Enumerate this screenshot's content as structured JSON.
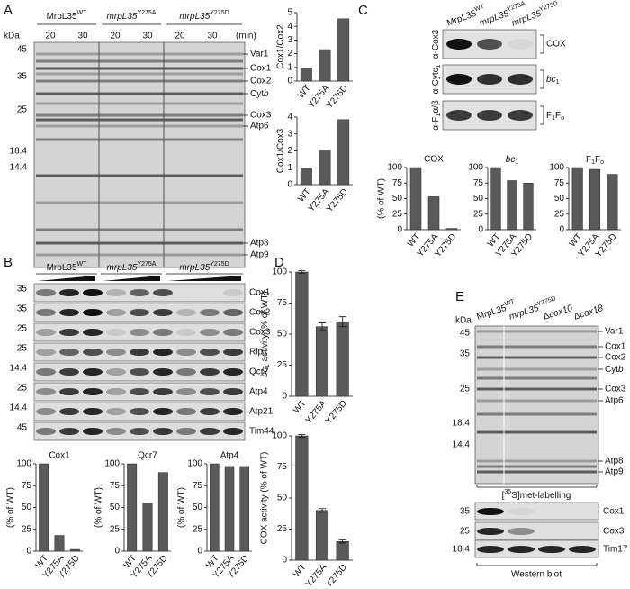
{
  "panels": {
    "A": {
      "label": "A",
      "strains": [
        [
          {
            "t": "MrpL35"
          },
          {
            "sup": "WT"
          }
        ],
        [
          {
            "i": "mrpL35"
          },
          {
            "sup": "Y275A"
          }
        ],
        [
          {
            "i": "mrpL35"
          },
          {
            "sup": "Y275D"
          }
        ]
      ],
      "kda": "kDa",
      "lanes": [
        "20",
        "30",
        "20",
        "30",
        "20",
        "30"
      ],
      "lane_unit": "(min)",
      "markers": [
        "45",
        "35",
        "25",
        "18.4",
        "14.4"
      ],
      "bands": [
        "Var1",
        "Cox1",
        "Cox2",
        [
          {
            "t": "Cyt"
          },
          {
            "i": "b"
          }
        ],
        "Cox3",
        "Atp6",
        "Atp8",
        "Atp9"
      ]
    },
    "B": {
      "label": "B",
      "strains": [
        [
          {
            "t": "MrpL35"
          },
          {
            "sup": "WT"
          }
        ],
        [
          {
            "i": "mrpL35"
          },
          {
            "sup": "Y275A"
          }
        ],
        [
          {
            "i": "mrpL35"
          },
          {
            "sup": "Y275D"
          }
        ]
      ],
      "rows": [
        {
          "marker": "35",
          "protein": "Cox1"
        },
        {
          "marker": "35",
          "protein": "Cox2"
        },
        {
          "marker": "25",
          "protein": "Cox3"
        },
        {
          "marker": "25",
          "protein": "Rip1"
        },
        {
          "marker": "14.4",
          "protein": "Qcr7"
        },
        {
          "marker": "25",
          "protein": "Atp4"
        },
        {
          "marker": "14.4",
          "protein": "Atp21"
        },
        {
          "marker": "45",
          "protein": "Tim44"
        }
      ]
    },
    "C": {
      "label": "C",
      "strains": [
        [
          {
            "t": "MrpL35"
          },
          {
            "sup": "WT"
          }
        ],
        [
          {
            "i": "mrpL35"
          },
          {
            "sup": "Y275A"
          }
        ],
        [
          {
            "i": "mrpL35"
          },
          {
            "sup": "Y275D"
          }
        ]
      ],
      "rows": [
        {
          "antibody": [
            {
              "t": "α-Cox3"
            }
          ],
          "complex": "COX"
        },
        {
          "antibody": [
            {
              "t": "α-Cytc"
            },
            {
              "sub": "1"
            }
          ],
          "complex": [
            {
              "i": "bc"
            },
            {
              "sub": "1"
            }
          ]
        },
        {
          "antibody": [
            {
              "t": "α-F"
            },
            {
              "sub": "1"
            },
            {
              "t": "α/β"
            }
          ],
          "complex": [
            {
              "t": "F"
            },
            {
              "sub": "1"
            },
            {
              "t": "F"
            },
            {
              "sub": "o"
            }
          ]
        }
      ]
    },
    "D": {
      "label": "D"
    },
    "E": {
      "label": "E",
      "strains": [
        [
          {
            "t": "MrpL35"
          },
          {
            "sup": "WT"
          }
        ],
        [
          {
            "i": "mrpL35"
          },
          {
            "sup": "Y275D"
          }
        ],
        [
          {
            "t": "Δ"
          },
          {
            "i": "cox10"
          }
        ],
        [
          {
            "t": "Δ"
          },
          {
            "i": "cox18"
          }
        ]
      ],
      "kda": "kDa",
      "markers": [
        "45",
        "35",
        "25",
        "18.4",
        "14.4"
      ],
      "bands": [
        "Var1",
        "Cox1",
        "Cox2",
        [
          {
            "t": "Cyt"
          },
          {
            "i": "b"
          }
        ],
        "Cox3",
        "Atp6",
        "Atp8",
        "Atp9"
      ],
      "labelling": [
        {
          "t": "["
        },
        {
          "sup": "35"
        },
        {
          "t": "S]met-labelling"
        }
      ],
      "western_rows": [
        {
          "marker": "35",
          "protein": "Cox1"
        },
        {
          "marker": "25",
          "protein": "Cox3"
        },
        {
          "marker": "18.4",
          "protein": "Tim17"
        }
      ],
      "western": "Western blot"
    }
  },
  "chart_data": [
    {
      "type": "bar",
      "ylabel": "Cox1/Cox2",
      "categories": [
        "WT",
        "Y275A",
        "Y275D"
      ],
      "values": [
        0.95,
        2.3,
        4.55
      ],
      "ylim": [
        0,
        5
      ],
      "yticks": [
        0,
        1,
        2,
        3,
        4,
        5
      ],
      "color": "#5a5a5a"
    },
    {
      "type": "bar",
      "ylabel": "Cox1/Cox3",
      "categories": [
        "WT",
        "Y275A",
        "Y275D"
      ],
      "values": [
        1.0,
        2.0,
        3.85
      ],
      "ylim": [
        0,
        4
      ],
      "yticks": [
        0,
        1,
        2,
        3,
        4
      ],
      "color": "#5a5a5a"
    },
    {
      "type": "bar",
      "title": "Cox1",
      "ylabel": "(% of WT)",
      "categories": [
        "WT",
        "Y275A",
        "Y275D"
      ],
      "values": [
        100,
        18,
        2
      ],
      "ylim": [
        0,
        100
      ],
      "yticks": [
        0,
        25,
        50,
        75,
        100
      ],
      "color": "#5a5a5a"
    },
    {
      "type": "bar",
      "title": "Qcr7",
      "ylabel": "(% of WT)",
      "categories": [
        "WT",
        "Y275A",
        "Y275D"
      ],
      "values": [
        100,
        55,
        90
      ],
      "ylim": [
        0,
        100
      ],
      "yticks": [
        0,
        25,
        50,
        75,
        100
      ],
      "color": "#5a5a5a"
    },
    {
      "type": "bar",
      "title": "Atp4",
      "ylabel": "(% of WT)",
      "categories": [
        "WT",
        "Y275A",
        "Y275D"
      ],
      "values": [
        100,
        97,
        97
      ],
      "ylim": [
        0,
        100
      ],
      "yticks": [
        0,
        25,
        50,
        75,
        100
      ],
      "color": "#5a5a5a"
    },
    {
      "type": "bar",
      "title": "COX",
      "ylabel": "(% of WT)",
      "categories": [
        "WT",
        "Y275A",
        "Y275D"
      ],
      "values": [
        100,
        53,
        2
      ],
      "ylim": [
        0,
        100
      ],
      "yticks": [
        0,
        25,
        50,
        75,
        100
      ],
      "color": "#5a5a5a"
    },
    {
      "type": "bar",
      "title": [
        {
          "i": "bc"
        },
        {
          "sub": "1"
        }
      ],
      "categories": [
        "WT",
        "Y275A",
        "Y275D"
      ],
      "values": [
        100,
        79,
        75
      ],
      "ylim": [
        0,
        100
      ],
      "yticks": [
        0,
        25,
        50,
        75,
        100
      ],
      "color": "#5a5a5a"
    },
    {
      "type": "bar",
      "title": [
        {
          "t": "F"
        },
        {
          "sub": "1"
        },
        {
          "t": "F"
        },
        {
          "sub": "o"
        }
      ],
      "categories": [
        "WT",
        "Y275A",
        "Y275D"
      ],
      "values": [
        100,
        97,
        89
      ],
      "ylim": [
        0,
        100
      ],
      "yticks": [
        0,
        25,
        50,
        75,
        100
      ],
      "color": "#5a5a5a"
    },
    {
      "type": "bar",
      "ylabel": [
        {
          "i": "bc"
        },
        {
          "sub": "1"
        },
        {
          "t": " activity (% of WT)"
        }
      ],
      "categories": [
        "WT",
        "Y275A",
        "Y275D"
      ],
      "values": [
        100,
        56,
        60
      ],
      "errors": [
        1,
        3,
        4
      ],
      "ylim": [
        0,
        100
      ],
      "yticks": [
        0,
        25,
        50,
        75,
        100
      ],
      "color": "#5a5a5a"
    },
    {
      "type": "bar",
      "ylabel": "COX activity (% of WT)",
      "categories": [
        "WT",
        "Y275A",
        "Y275D"
      ],
      "values": [
        100,
        40,
        15
      ],
      "errors": [
        1,
        1.5,
        1.2
      ],
      "ylim": [
        0,
        100
      ],
      "yticks": [
        0,
        25,
        50,
        75,
        100
      ],
      "color": "#5a5a5a"
    }
  ]
}
